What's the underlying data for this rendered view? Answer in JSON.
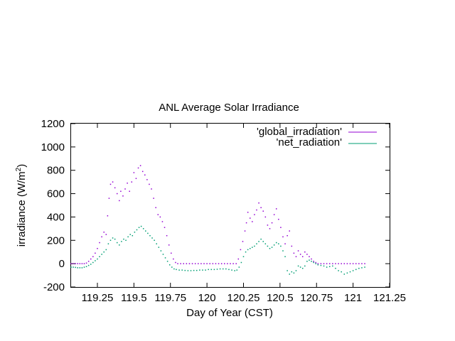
{
  "chart_data": {
    "type": "scatter",
    "title": "ANL Average Solar Irradiance",
    "xlabel": "Day of Year  (CST)",
    "ylabel": "irradiance (W/m",
    "ylabel_sup": "2",
    "ylabel_end": ")",
    "xlim": [
      119.07,
      121.25
    ],
    "ylim": [
      -200,
      1200
    ],
    "x_ticks": [
      119.25,
      119.5,
      119.75,
      120,
      120.25,
      120.5,
      120.75,
      121,
      121.25
    ],
    "x_tick_labels": [
      "119.25",
      "119.5",
      "119.75",
      "120",
      "120.25",
      "120.5",
      "120.75",
      "121",
      "121.25"
    ],
    "y_ticks": [
      -200,
      0,
      200,
      400,
      600,
      800,
      1000,
      1200
    ],
    "y_tick_labels": [
      "-200",
      "0",
      "200",
      "400",
      "600",
      "800",
      "1000",
      "1200"
    ],
    "grid": false,
    "legend_position": "top-right",
    "series": [
      {
        "name": "'global_irradiation'",
        "color": "#9400d3",
        "points": [
          [
            119.07,
            0
          ],
          [
            119.085,
            0
          ],
          [
            119.1,
            0
          ],
          [
            119.115,
            0
          ],
          [
            119.13,
            0
          ],
          [
            119.145,
            0
          ],
          [
            119.16,
            0
          ],
          [
            119.175,
            5
          ],
          [
            119.19,
            20
          ],
          [
            119.205,
            40
          ],
          [
            119.22,
            60
          ],
          [
            119.235,
            90
          ],
          [
            119.25,
            130
          ],
          [
            119.265,
            180
          ],
          [
            119.28,
            230
          ],
          [
            119.295,
            270
          ],
          [
            119.31,
            250
          ],
          [
            119.32,
            410
          ],
          [
            119.33,
            560
          ],
          [
            119.34,
            680
          ],
          [
            119.355,
            700
          ],
          [
            119.37,
            650
          ],
          [
            119.385,
            600
          ],
          [
            119.4,
            540
          ],
          [
            119.41,
            620
          ],
          [
            119.425,
            580
          ],
          [
            119.44,
            640
          ],
          [
            119.455,
            690
          ],
          [
            119.47,
            620
          ],
          [
            119.485,
            700
          ],
          [
            119.5,
            780
          ],
          [
            119.515,
            730
          ],
          [
            119.53,
            820
          ],
          [
            119.545,
            840
          ],
          [
            119.56,
            790
          ],
          [
            119.575,
            760
          ],
          [
            119.59,
            720
          ],
          [
            119.605,
            680
          ],
          [
            119.62,
            640
          ],
          [
            119.635,
            560
          ],
          [
            119.65,
            480
          ],
          [
            119.665,
            420
          ],
          [
            119.68,
            400
          ],
          [
            119.695,
            360
          ],
          [
            119.71,
            310
          ],
          [
            119.725,
            240
          ],
          [
            119.74,
            160
          ],
          [
            119.755,
            90
          ],
          [
            119.77,
            40
          ],
          [
            119.785,
            10
          ],
          [
            119.8,
            0
          ],
          [
            119.82,
            0
          ],
          [
            119.84,
            0
          ],
          [
            119.86,
            0
          ],
          [
            119.88,
            0
          ],
          [
            119.9,
            0
          ],
          [
            119.92,
            0
          ],
          [
            119.94,
            0
          ],
          [
            119.96,
            0
          ],
          [
            119.98,
            0
          ],
          [
            120.0,
            0
          ],
          [
            120.02,
            0
          ],
          [
            120.04,
            0
          ],
          [
            120.06,
            0
          ],
          [
            120.08,
            0
          ],
          [
            120.1,
            0
          ],
          [
            120.12,
            0
          ],
          [
            120.14,
            0
          ],
          [
            120.16,
            0
          ],
          [
            120.18,
            0
          ],
          [
            120.2,
            0
          ],
          [
            120.215,
            40
          ],
          [
            120.23,
            120
          ],
          [
            120.245,
            190
          ],
          [
            120.26,
            280
          ],
          [
            120.27,
            350
          ],
          [
            120.28,
            440
          ],
          [
            120.295,
            390
          ],
          [
            120.31,
            360
          ],
          [
            120.325,
            420
          ],
          [
            120.34,
            460
          ],
          [
            120.355,
            520
          ],
          [
            120.37,
            480
          ],
          [
            120.385,
            450
          ],
          [
            120.4,
            400
          ],
          [
            120.415,
            330
          ],
          [
            120.43,
            300
          ],
          [
            120.445,
            350
          ],
          [
            120.46,
            420
          ],
          [
            120.475,
            470
          ],
          [
            120.49,
            380
          ],
          [
            120.505,
            310
          ],
          [
            120.52,
            230
          ],
          [
            120.535,
            170
          ],
          [
            120.55,
            240
          ],
          [
            120.565,
            280
          ],
          [
            120.58,
            150
          ],
          [
            120.595,
            90
          ],
          [
            120.61,
            60
          ],
          [
            120.625,
            110
          ],
          [
            120.64,
            80
          ],
          [
            120.655,
            60
          ],
          [
            120.67,
            100
          ],
          [
            120.685,
            80
          ],
          [
            120.7,
            60
          ],
          [
            120.715,
            40
          ],
          [
            120.73,
            20
          ],
          [
            120.745,
            10
          ],
          [
            120.76,
            0
          ],
          [
            120.78,
            0
          ],
          [
            120.8,
            0
          ],
          [
            120.82,
            0
          ],
          [
            120.84,
            0
          ],
          [
            120.86,
            0
          ],
          [
            120.88,
            0
          ],
          [
            120.9,
            0
          ],
          [
            120.92,
            0
          ],
          [
            120.94,
            0
          ],
          [
            120.96,
            0
          ],
          [
            120.98,
            0
          ],
          [
            121.0,
            0
          ],
          [
            121.02,
            0
          ],
          [
            121.04,
            0
          ],
          [
            121.06,
            0
          ],
          [
            121.08,
            0
          ]
        ]
      },
      {
        "name": "'net_radiation'",
        "color": "#009e73",
        "points": [
          [
            119.07,
            -30
          ],
          [
            119.085,
            -30
          ],
          [
            119.1,
            -32
          ],
          [
            119.115,
            -35
          ],
          [
            119.13,
            -35
          ],
          [
            119.145,
            -35
          ],
          [
            119.16,
            -30
          ],
          [
            119.175,
            -25
          ],
          [
            119.19,
            -15
          ],
          [
            119.205,
            -5
          ],
          [
            119.22,
            10
          ],
          [
            119.235,
            25
          ],
          [
            119.25,
            40
          ],
          [
            119.265,
            60
          ],
          [
            119.28,
            80
          ],
          [
            119.295,
            100
          ],
          [
            119.31,
            120
          ],
          [
            119.325,
            170
          ],
          [
            119.34,
            200
          ],
          [
            119.355,
            220
          ],
          [
            119.37,
            210
          ],
          [
            119.385,
            180
          ],
          [
            119.4,
            160
          ],
          [
            119.415,
            190
          ],
          [
            119.43,
            210
          ],
          [
            119.445,
            200
          ],
          [
            119.46,
            230
          ],
          [
            119.475,
            250
          ],
          [
            119.49,
            240
          ],
          [
            119.505,
            270
          ],
          [
            119.52,
            290
          ],
          [
            119.535,
            310
          ],
          [
            119.55,
            320
          ],
          [
            119.565,
            300
          ],
          [
            119.58,
            280
          ],
          [
            119.595,
            260
          ],
          [
            119.61,
            240
          ],
          [
            119.625,
            220
          ],
          [
            119.64,
            200
          ],
          [
            119.655,
            170
          ],
          [
            119.67,
            140
          ],
          [
            119.685,
            110
          ],
          [
            119.7,
            80
          ],
          [
            119.715,
            50
          ],
          [
            119.73,
            20
          ],
          [
            119.745,
            -10
          ],
          [
            119.76,
            -30
          ],
          [
            119.775,
            -45
          ],
          [
            119.79,
            -50
          ],
          [
            119.81,
            -55
          ],
          [
            119.83,
            -55
          ],
          [
            119.85,
            -58
          ],
          [
            119.87,
            -60
          ],
          [
            119.89,
            -60
          ],
          [
            119.91,
            -58
          ],
          [
            119.93,
            -58
          ],
          [
            119.95,
            -55
          ],
          [
            119.97,
            -55
          ],
          [
            119.99,
            -55
          ],
          [
            120.01,
            -50
          ],
          [
            120.03,
            -50
          ],
          [
            120.05,
            -50
          ],
          [
            120.07,
            -48
          ],
          [
            120.09,
            -45
          ],
          [
            120.11,
            -45
          ],
          [
            120.13,
            -45
          ],
          [
            120.15,
            -50
          ],
          [
            120.17,
            -55
          ],
          [
            120.19,
            -60
          ],
          [
            120.205,
            -55
          ],
          [
            120.22,
            -30
          ],
          [
            120.235,
            10
          ],
          [
            120.25,
            60
          ],
          [
            120.265,
            100
          ],
          [
            120.28,
            120
          ],
          [
            120.295,
            130
          ],
          [
            120.31,
            140
          ],
          [
            120.325,
            150
          ],
          [
            120.34,
            170
          ],
          [
            120.355,
            190
          ],
          [
            120.37,
            210
          ],
          [
            120.385,
            190
          ],
          [
            120.4,
            170
          ],
          [
            120.415,
            150
          ],
          [
            120.43,
            130
          ],
          [
            120.445,
            140
          ],
          [
            120.46,
            160
          ],
          [
            120.475,
            180
          ],
          [
            120.49,
            170
          ],
          [
            120.505,
            150
          ],
          [
            120.52,
            110
          ],
          [
            120.535,
            60
          ],
          [
            120.55,
            -60
          ],
          [
            120.565,
            -90
          ],
          [
            120.58,
            -70
          ],
          [
            120.595,
            -80
          ],
          [
            120.61,
            -60
          ],
          [
            120.625,
            -20
          ],
          [
            120.64,
            -30
          ],
          [
            120.655,
            -40
          ],
          [
            120.67,
            -20
          ],
          [
            120.685,
            20
          ],
          [
            120.7,
            30
          ],
          [
            120.715,
            20
          ],
          [
            120.73,
            10
          ],
          [
            120.745,
            0
          ],
          [
            120.76,
            -10
          ],
          [
            120.78,
            -15
          ],
          [
            120.8,
            -20
          ],
          [
            120.82,
            -30
          ],
          [
            120.84,
            -25
          ],
          [
            120.86,
            -20
          ],
          [
            120.88,
            -40
          ],
          [
            120.9,
            -60
          ],
          [
            120.92,
            -70
          ],
          [
            120.94,
            -90
          ],
          [
            120.96,
            -80
          ],
          [
            120.98,
            -70
          ],
          [
            121.0,
            -60
          ],
          [
            121.02,
            -50
          ],
          [
            121.04,
            -40
          ],
          [
            121.06,
            -35
          ],
          [
            121.08,
            -30
          ]
        ]
      }
    ]
  }
}
